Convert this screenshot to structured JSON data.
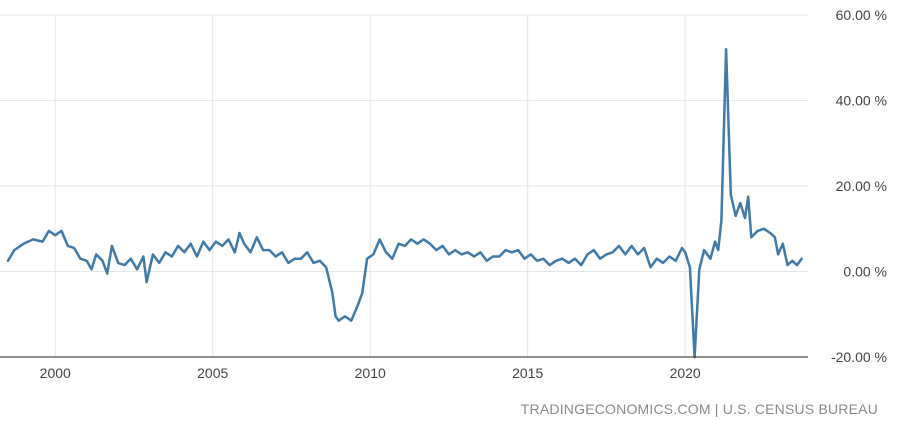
{
  "source_credit": "TRADINGECONOMICS.COM | U.S. CENSUS BUREAU",
  "colors": {
    "series": "#3f7aa8",
    "grid": "#e6e6e6",
    "axis": "#222222",
    "tick_text": "#444444",
    "credit_text": "#8a8a8a"
  },
  "chart_data": {
    "type": "line",
    "title": "",
    "xlabel": "",
    "ylabel": "",
    "x_unit": "year",
    "xlim": [
      1998.5,
      2023.9
    ],
    "ylim": [
      -20,
      60
    ],
    "grid": true,
    "legend": "none",
    "x_ticks": [
      2000,
      2005,
      2010,
      2015,
      2020
    ],
    "x_tick_labels": [
      "2000",
      "2005",
      "2010",
      "2015",
      "2020"
    ],
    "y_ticks": [
      60,
      40,
      20,
      0,
      -20
    ],
    "y_tick_labels": [
      "60.00 %",
      "40.00 %",
      "20.00 %",
      "0.00 %",
      "-20.00 %"
    ],
    "series": [
      {
        "color": "#3f7aa8",
        "points": [
          [
            1998.5,
            2.5
          ],
          [
            1998.7,
            5.0
          ],
          [
            1999.0,
            6.5
          ],
          [
            1999.3,
            7.5
          ],
          [
            1999.6,
            7.0
          ],
          [
            1999.8,
            9.5
          ],
          [
            2000.0,
            8.5
          ],
          [
            2000.2,
            9.5
          ],
          [
            2000.4,
            6.0
          ],
          [
            2000.6,
            5.5
          ],
          [
            2000.8,
            3.0
          ],
          [
            2001.0,
            2.5
          ],
          [
            2001.15,
            0.5
          ],
          [
            2001.3,
            4.0
          ],
          [
            2001.5,
            2.5
          ],
          [
            2001.65,
            -0.5
          ],
          [
            2001.8,
            6.0
          ],
          [
            2002.0,
            2.0
          ],
          [
            2002.2,
            1.5
          ],
          [
            2002.4,
            3.0
          ],
          [
            2002.6,
            0.5
          ],
          [
            2002.8,
            3.5
          ],
          [
            2002.9,
            -2.5
          ],
          [
            2003.1,
            4.0
          ],
          [
            2003.3,
            2.0
          ],
          [
            2003.5,
            4.5
          ],
          [
            2003.7,
            3.5
          ],
          [
            2003.9,
            6.0
          ],
          [
            2004.1,
            4.5
          ],
          [
            2004.3,
            6.5
          ],
          [
            2004.5,
            3.5
          ],
          [
            2004.7,
            7.0
          ],
          [
            2004.9,
            5.0
          ],
          [
            2005.1,
            7.0
          ],
          [
            2005.3,
            6.0
          ],
          [
            2005.5,
            7.5
          ],
          [
            2005.7,
            4.5
          ],
          [
            2005.85,
            9.0
          ],
          [
            2006.0,
            6.5
          ],
          [
            2006.2,
            4.5
          ],
          [
            2006.4,
            8.0
          ],
          [
            2006.6,
            5.0
          ],
          [
            2006.8,
            5.0
          ],
          [
            2007.0,
            3.5
          ],
          [
            2007.2,
            4.5
          ],
          [
            2007.4,
            2.0
          ],
          [
            2007.6,
            3.0
          ],
          [
            2007.8,
            3.0
          ],
          [
            2008.0,
            4.5
          ],
          [
            2008.2,
            2.0
          ],
          [
            2008.4,
            2.5
          ],
          [
            2008.6,
            1.0
          ],
          [
            2008.8,
            -5.0
          ],
          [
            2008.9,
            -10.5
          ],
          [
            2009.0,
            -11.5
          ],
          [
            2009.2,
            -10.5
          ],
          [
            2009.4,
            -11.5
          ],
          [
            2009.6,
            -8.0
          ],
          [
            2009.75,
            -5.0
          ],
          [
            2009.9,
            3.0
          ],
          [
            2010.1,
            4.0
          ],
          [
            2010.3,
            7.5
          ],
          [
            2010.5,
            4.5
          ],
          [
            2010.7,
            3.0
          ],
          [
            2010.9,
            6.5
          ],
          [
            2011.1,
            6.0
          ],
          [
            2011.3,
            7.5
          ],
          [
            2011.5,
            6.5
          ],
          [
            2011.7,
            7.5
          ],
          [
            2011.9,
            6.5
          ],
          [
            2012.1,
            5.0
          ],
          [
            2012.3,
            6.0
          ],
          [
            2012.5,
            4.0
          ],
          [
            2012.7,
            5.0
          ],
          [
            2012.9,
            4.0
          ],
          [
            2013.1,
            4.5
          ],
          [
            2013.3,
            3.5
          ],
          [
            2013.5,
            4.5
          ],
          [
            2013.7,
            2.5
          ],
          [
            2013.9,
            3.5
          ],
          [
            2014.1,
            3.5
          ],
          [
            2014.3,
            5.0
          ],
          [
            2014.5,
            4.5
          ],
          [
            2014.7,
            5.0
          ],
          [
            2014.9,
            3.0
          ],
          [
            2015.1,
            4.0
          ],
          [
            2015.3,
            2.5
          ],
          [
            2015.5,
            3.0
          ],
          [
            2015.7,
            1.5
          ],
          [
            2015.9,
            2.5
          ],
          [
            2016.1,
            3.0
          ],
          [
            2016.3,
            2.0
          ],
          [
            2016.5,
            3.0
          ],
          [
            2016.7,
            1.5
          ],
          [
            2016.9,
            4.0
          ],
          [
            2017.1,
            5.0
          ],
          [
            2017.3,
            3.0
          ],
          [
            2017.5,
            4.0
          ],
          [
            2017.7,
            4.5
          ],
          [
            2017.9,
            6.0
          ],
          [
            2018.1,
            4.0
          ],
          [
            2018.3,
            6.0
          ],
          [
            2018.5,
            4.0
          ],
          [
            2018.7,
            5.5
          ],
          [
            2018.9,
            1.0
          ],
          [
            2019.1,
            3.0
          ],
          [
            2019.3,
            2.0
          ],
          [
            2019.5,
            3.5
          ],
          [
            2019.7,
            2.5
          ],
          [
            2019.9,
            5.5
          ],
          [
            2020.0,
            4.5
          ],
          [
            2020.15,
            1.0
          ],
          [
            2020.3,
            -20.0
          ],
          [
            2020.45,
            0.5
          ],
          [
            2020.6,
            5.0
          ],
          [
            2020.8,
            3.0
          ],
          [
            2020.95,
            7.0
          ],
          [
            2021.05,
            5.0
          ],
          [
            2021.15,
            12.0
          ],
          [
            2021.3,
            52.0
          ],
          [
            2021.45,
            18.0
          ],
          [
            2021.6,
            13.0
          ],
          [
            2021.75,
            16.0
          ],
          [
            2021.9,
            12.5
          ],
          [
            2022.0,
            17.5
          ],
          [
            2022.1,
            8.0
          ],
          [
            2022.3,
            9.5
          ],
          [
            2022.5,
            10.0
          ],
          [
            2022.7,
            9.0
          ],
          [
            2022.85,
            8.0
          ],
          [
            2022.95,
            4.0
          ],
          [
            2023.1,
            6.5
          ],
          [
            2023.25,
            1.5
          ],
          [
            2023.4,
            2.5
          ],
          [
            2023.55,
            1.5
          ],
          [
            2023.7,
            3.0
          ]
        ]
      }
    ]
  }
}
